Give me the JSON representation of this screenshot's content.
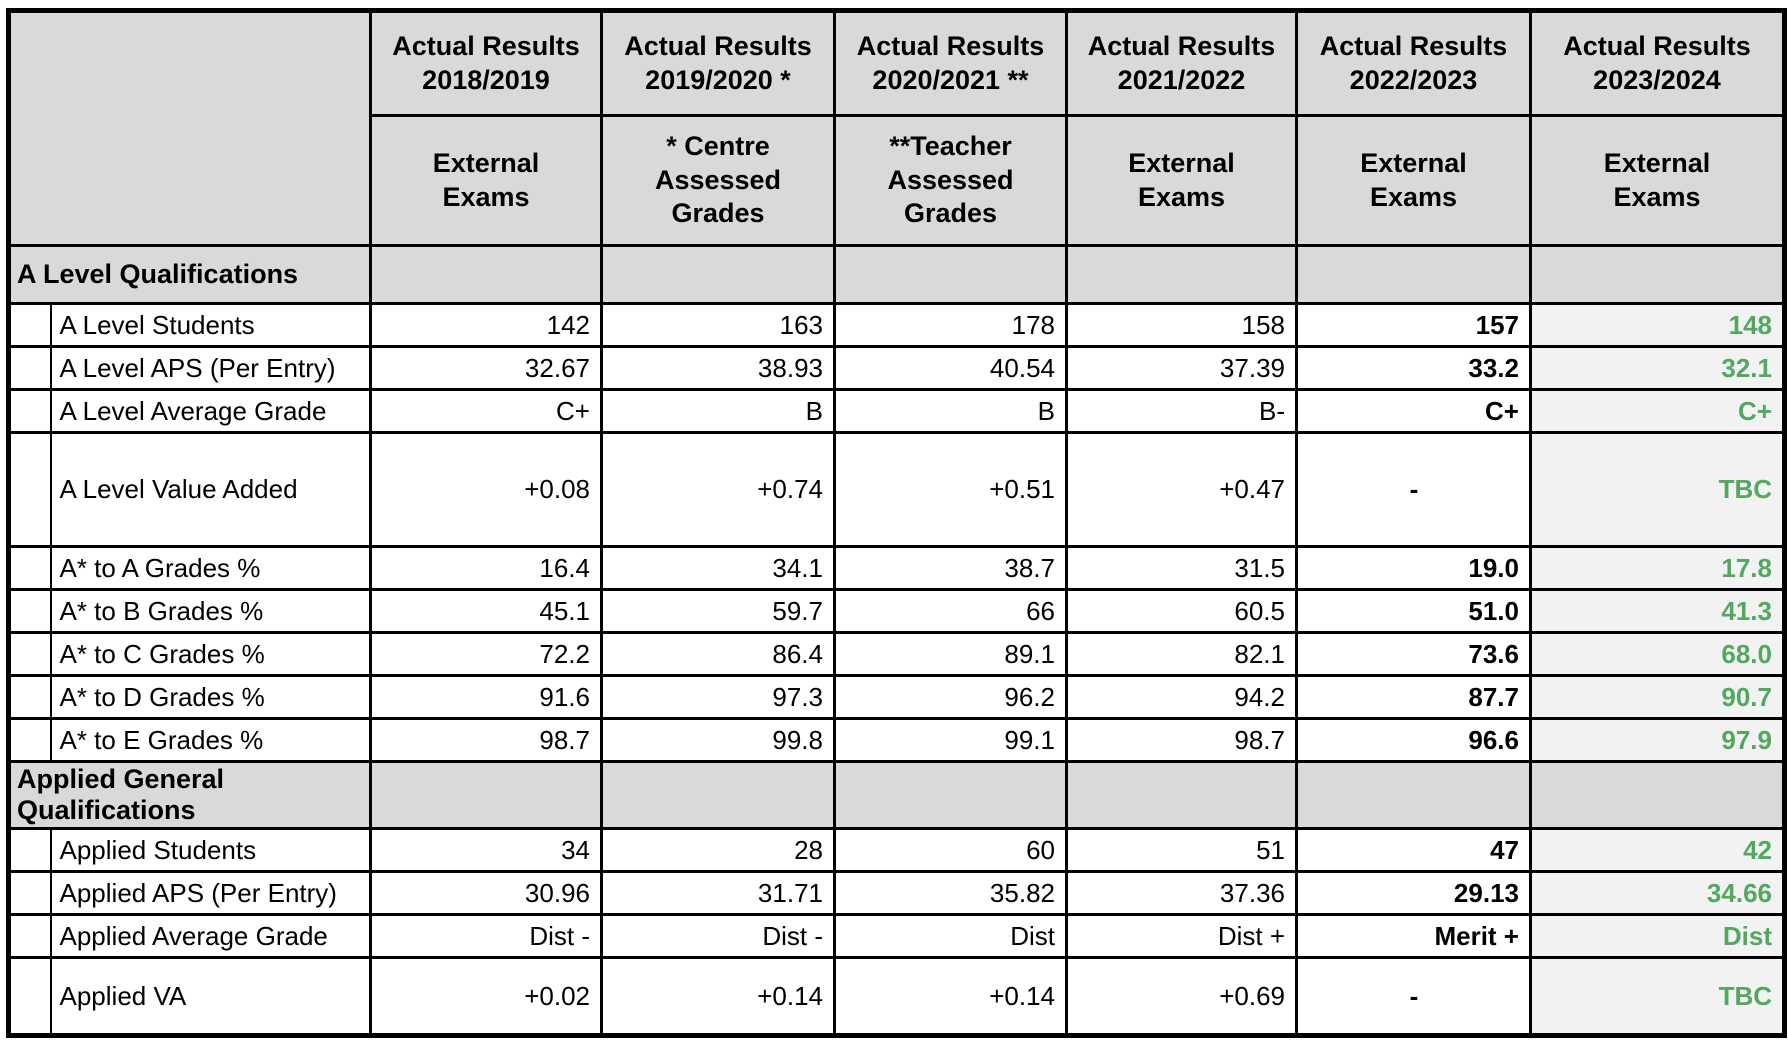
{
  "colors": {
    "latest_text_green": "#52A85E",
    "header_bg": "#d9d9d9",
    "latest_col_bg": "#f2f2f2",
    "grid": "#000000"
  },
  "table": {
    "columns": [
      {
        "title": "Actual Results 2018/2019",
        "subtitle": "External Exams"
      },
      {
        "title": "Actual Results 2019/2020 *",
        "subtitle": "* Centre Assessed Grades"
      },
      {
        "title": "Actual Results 2020/2021 **",
        "subtitle": "**Teacher Assessed Grades"
      },
      {
        "title": "Actual Results 2021/2022",
        "subtitle": "External Exams"
      },
      {
        "title": "Actual Results 2022/2023",
        "subtitle": "External Exams"
      },
      {
        "title": "Actual Results 2023/2024",
        "subtitle": "External Exams"
      }
    ],
    "sections": [
      {
        "title": "A Level Qualifications",
        "rows": [
          {
            "label": "A Level Students",
            "values": [
              "142",
              "163",
              "178",
              "158",
              "157",
              "148"
            ]
          },
          {
            "label": "A Level APS (Per Entry)",
            "values": [
              "32.67",
              "38.93",
              "40.54",
              "37.39",
              "33.2",
              "32.1"
            ]
          },
          {
            "label": "A Level Average Grade",
            "values": [
              "C+",
              "B",
              "B",
              "B-",
              "C+",
              "C+"
            ]
          },
          {
            "label": "A Level Value Added",
            "values": [
              "+0.08",
              "+0.74",
              "+0.51",
              "+0.47",
              "-",
              "TBC"
            ]
          },
          {
            "label": "A* to A Grades %",
            "values": [
              "16.4",
              "34.1",
              "38.7",
              "31.5",
              "19.0",
              "17.8"
            ]
          },
          {
            "label": "A* to B Grades %",
            "values": [
              "45.1",
              "59.7",
              "66",
              "60.5",
              "51.0",
              "41.3"
            ]
          },
          {
            "label": "A* to C Grades %",
            "values": [
              "72.2",
              "86.4",
              "89.1",
              "82.1",
              "73.6",
              "68.0"
            ]
          },
          {
            "label": "A* to D Grades %",
            "values": [
              "91.6",
              "97.3",
              "96.2",
              "94.2",
              "87.7",
              "90.7"
            ]
          },
          {
            "label": "A* to E Grades %",
            "values": [
              "98.7",
              "99.8",
              "99.1",
              "98.7",
              "96.6",
              "97.9"
            ]
          }
        ]
      },
      {
        "title": "Applied General Qualifications",
        "rows": [
          {
            "label": "Applied Students",
            "values": [
              "34",
              "28",
              "60",
              "51",
              "47",
              "42"
            ]
          },
          {
            "label": "Applied APS (Per Entry)",
            "values": [
              "30.96",
              "31.71",
              "35.82",
              "37.36",
              "29.13",
              "34.66"
            ]
          },
          {
            "label": "Applied Average Grade",
            "values": [
              "Dist -",
              "Dist -",
              "Dist",
              "Dist +",
              "Merit +",
              "Dist"
            ]
          },
          {
            "label": "Applied VA",
            "values": [
              "+0.02",
              "+0.14",
              "+0.14",
              "+0.69",
              "-",
              "TBC"
            ]
          }
        ]
      }
    ]
  }
}
